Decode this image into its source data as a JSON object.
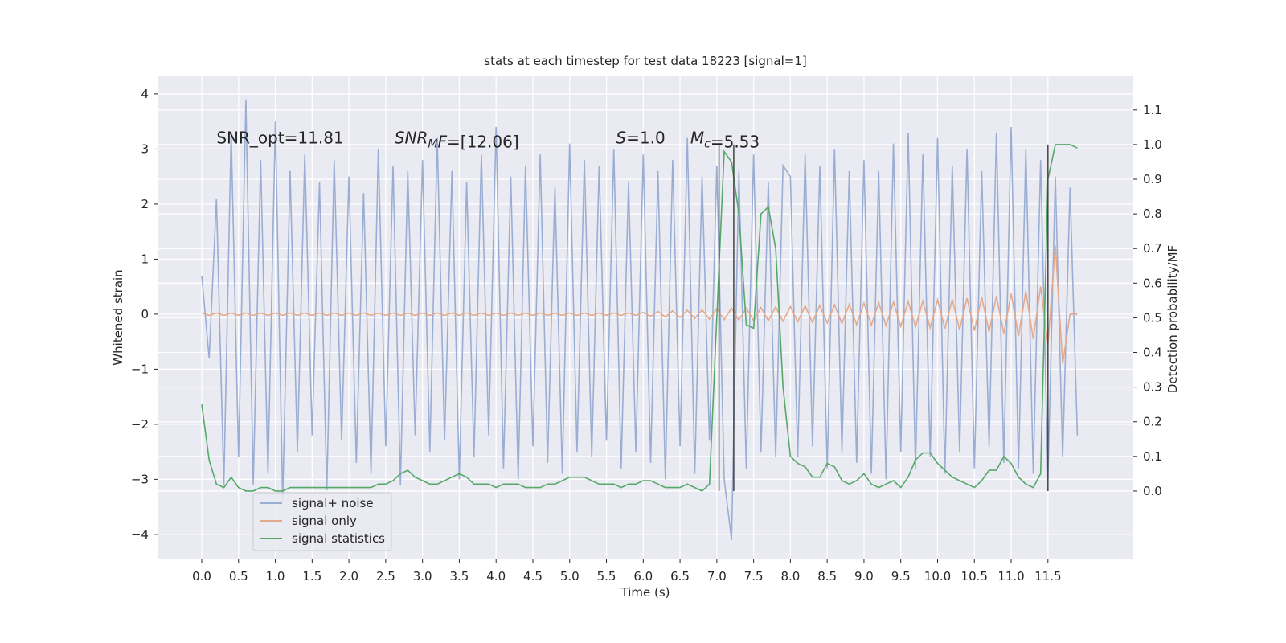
{
  "chart_data": {
    "type": "line",
    "title": "stats at each timestep for test data 18223 [signal=1]",
    "x_label": "Time (s)",
    "y_label": "Whitened strain",
    "y2_label": "Detection probability/MF",
    "background": "#eaeaf2",
    "grid": true,
    "legend": "lower left",
    "xlim": [
      -0.59,
      12.66
    ],
    "ylim": [
      -4.44,
      4.32
    ],
    "y2lim": [
      -0.195,
      1.197
    ],
    "xticks": [
      {
        "value": 0,
        "label": "0.0"
      },
      0.5,
      {
        "value": 1,
        "label": "1.0"
      },
      1.5,
      {
        "value": 2,
        "label": "2.0"
      },
      2.5,
      {
        "value": 3,
        "label": "3.0"
      },
      3.5,
      {
        "value": 4,
        "label": "4.0"
      },
      4.5,
      {
        "value": 5,
        "label": "5.0"
      },
      5.5,
      {
        "value": 6,
        "label": "6.0"
      },
      6.5,
      {
        "value": 7,
        "label": "7.0"
      },
      7.5,
      {
        "value": 8,
        "label": "8.0"
      },
      8.5,
      {
        "value": 9,
        "label": "9.0"
      },
      9.5,
      {
        "value": 10,
        "label": "10.0"
      },
      10.5,
      {
        "value": 11,
        "label": "11.0"
      },
      11.5
    ],
    "yticks": [
      {
        "value": -4,
        "label": "−4"
      },
      {
        "value": -3,
        "label": "−3"
      },
      {
        "value": -2,
        "label": "−2"
      },
      {
        "value": -1,
        "label": "−1"
      },
      0,
      1,
      2,
      3,
      4
    ],
    "y2ticks": [
      {
        "value": 0,
        "label": "0.0"
      },
      0.1,
      0.2,
      0.3,
      0.4,
      0.5,
      0.6,
      0.7,
      0.8,
      0.9,
      {
        "value": 1,
        "label": "1.0"
      },
      1.1
    ],
    "annotations": [
      {
        "x": 0.2,
        "y": 3.1,
        "parts": [
          {
            "text": "SNR_opt=11.81"
          }
        ]
      },
      {
        "x": 2.62,
        "y": 3.1,
        "parts": [
          {
            "text": "SNR",
            "italic": true
          },
          {
            "text": "M",
            "italic": true,
            "sub": true
          },
          {
            "text": "F",
            "italic": true
          },
          {
            "text": "=[12.06]"
          }
        ]
      },
      {
        "x": 5.63,
        "y": 3.1,
        "parts": [
          {
            "text": "S",
            "italic": true
          },
          {
            "text": "=1.0"
          }
        ]
      },
      {
        "x": 6.64,
        "y": 3.1,
        "parts": [
          {
            "text": "M",
            "italic": true
          },
          {
            "text": "c",
            "italic": true,
            "sub": true
          },
          {
            "text": "=5.53"
          }
        ]
      }
    ],
    "vlines": {
      "x": [
        7.03,
        7.23,
        11.5
      ],
      "y2": [
        0,
        1
      ],
      "color": "#444444"
    },
    "x": [
      0.0,
      0.1,
      0.2,
      0.3,
      0.4,
      0.5,
      0.6,
      0.7,
      0.8,
      0.9,
      1.0,
      1.1,
      1.2,
      1.3,
      1.4,
      1.5,
      1.6,
      1.7,
      1.8,
      1.9,
      2.0,
      2.1,
      2.2,
      2.3,
      2.4,
      2.5,
      2.6,
      2.7,
      2.8,
      2.9,
      3.0,
      3.1,
      3.2,
      3.3,
      3.4,
      3.5,
      3.6,
      3.7,
      3.8,
      3.9,
      4.0,
      4.1,
      4.2,
      4.3,
      4.4,
      4.5,
      4.6,
      4.7,
      4.8,
      4.9,
      5.0,
      5.1,
      5.2,
      5.3,
      5.4,
      5.5,
      5.6,
      5.7,
      5.8,
      5.9,
      6.0,
      6.1,
      6.2,
      6.3,
      6.4,
      6.5,
      6.6,
      6.7,
      6.8,
      6.9,
      7.0,
      7.1,
      7.2,
      7.3,
      7.4,
      7.5,
      7.6,
      7.7,
      7.8,
      7.9,
      8.0,
      8.1,
      8.2,
      8.3,
      8.4,
      8.5,
      8.6,
      8.7,
      8.8,
      8.9,
      9.0,
      9.1,
      9.2,
      9.3,
      9.4,
      9.5,
      9.6,
      9.7,
      9.8,
      9.9,
      10.0,
      10.1,
      10.2,
      10.3,
      10.4,
      10.5,
      10.6,
      10.7,
      10.8,
      10.9,
      11.0,
      11.1,
      11.2,
      11.3,
      11.4,
      11.5,
      11.6,
      11.7,
      11.8,
      11.9
    ],
    "series": [
      {
        "name": "signal+ noise",
        "color": "#9aaed3",
        "values": [
          0.7,
          -0.8,
          2.1,
          -3.1,
          3.3,
          -2.6,
          3.9,
          -3.1,
          2.8,
          -2.9,
          3.5,
          -3.4,
          2.6,
          -2.5,
          2.9,
          -2.2,
          2.4,
          -3.2,
          2.8,
          -2.3,
          2.5,
          -2.7,
          2.2,
          -2.9,
          3.0,
          -2.4,
          2.7,
          -3.1,
          2.6,
          -2.2,
          2.8,
          -2.5,
          3.2,
          -2.3,
          2.6,
          -3.0,
          2.4,
          -2.6,
          2.9,
          -2.2,
          3.4,
          -2.8,
          2.5,
          -3.0,
          2.7,
          -2.4,
          2.9,
          -2.7,
          2.3,
          -2.9,
          3.1,
          -2.5,
          2.8,
          -2.6,
          2.7,
          -2.3,
          3.0,
          -2.8,
          2.4,
          -2.5,
          2.9,
          -2.7,
          2.6,
          -3.0,
          2.8,
          -2.4,
          3.2,
          -2.9,
          2.5,
          -2.3,
          2.7,
          -3.0,
          -4.1,
          2.6,
          -2.8,
          2.9,
          -2.5,
          2.4,
          -2.6,
          2.7,
          2.5,
          -2.6,
          2.9,
          -2.4,
          2.7,
          -2.8,
          3.0,
          -2.5,
          2.6,
          -2.7,
          2.8,
          -2.9,
          2.6,
          -3.0,
          3.1,
          -2.5,
          3.3,
          -2.8,
          2.9,
          -2.6,
          3.2,
          -2.9,
          2.7,
          -2.5,
          3.0,
          -2.8,
          2.6,
          -2.4,
          3.3,
          -2.7,
          3.4,
          -2.8,
          3.0,
          -2.9,
          2.8,
          -3.0,
          2.5,
          -2.6,
          2.3,
          -2.2
        ]
      },
      {
        "name": "signal only",
        "color": "#e3a98c",
        "values": [
          0.02,
          -0.02,
          0.02,
          -0.02,
          0.02,
          -0.02,
          0.02,
          -0.02,
          0.02,
          -0.02,
          0.02,
          -0.02,
          0.02,
          -0.02,
          0.02,
          -0.02,
          0.02,
          -0.02,
          0.02,
          -0.02,
          0.02,
          -0.02,
          0.02,
          -0.02,
          0.02,
          -0.02,
          0.02,
          -0.02,
          0.02,
          -0.02,
          0.02,
          -0.02,
          0.02,
          -0.02,
          0.02,
          -0.02,
          0.02,
          -0.02,
          0.02,
          -0.02,
          0.02,
          -0.02,
          0.02,
          -0.02,
          0.02,
          -0.02,
          0.02,
          -0.02,
          0.02,
          -0.02,
          0.02,
          -0.02,
          0.02,
          -0.02,
          0.02,
          -0.02,
          0.02,
          -0.02,
          0.02,
          -0.02,
          0.03,
          -0.04,
          0.05,
          -0.05,
          0.06,
          -0.06,
          0.07,
          -0.08,
          0.08,
          -0.09,
          0.1,
          -0.1,
          0.11,
          -0.11,
          0.11,
          -0.12,
          0.12,
          -0.12,
          0.13,
          -0.13,
          0.14,
          -0.14,
          0.15,
          -0.15,
          0.16,
          -0.16,
          0.17,
          -0.17,
          0.18,
          -0.19,
          0.2,
          -0.2,
          0.21,
          -0.21,
          0.22,
          -0.22,
          0.23,
          -0.23,
          0.24,
          -0.25,
          0.26,
          -0.26,
          0.27,
          -0.28,
          0.29,
          -0.3,
          0.31,
          -0.32,
          0.33,
          -0.35,
          0.37,
          -0.4,
          0.42,
          -0.45,
          0.5,
          -0.55,
          1.25,
          -0.9,
          0.0,
          0.0
        ]
      },
      {
        "name": "signal statistics",
        "color": "#55a868",
        "axis": "y2",
        "values": [
          0.25,
          0.09,
          0.02,
          0.01,
          0.04,
          0.01,
          0.0,
          0.0,
          0.01,
          0.01,
          0.0,
          0.0,
          0.01,
          0.01,
          0.01,
          0.01,
          0.01,
          0.01,
          0.01,
          0.01,
          0.01,
          0.01,
          0.01,
          0.01,
          0.02,
          0.02,
          0.03,
          0.05,
          0.06,
          0.04,
          0.03,
          0.02,
          0.02,
          0.03,
          0.04,
          0.05,
          0.04,
          0.02,
          0.02,
          0.02,
          0.01,
          0.02,
          0.02,
          0.02,
          0.01,
          0.01,
          0.01,
          0.02,
          0.02,
          0.03,
          0.04,
          0.04,
          0.04,
          0.03,
          0.02,
          0.02,
          0.02,
          0.01,
          0.02,
          0.02,
          0.03,
          0.03,
          0.02,
          0.01,
          0.01,
          0.01,
          0.02,
          0.01,
          0.0,
          0.02,
          0.5,
          0.98,
          0.95,
          0.8,
          0.48,
          0.47,
          0.8,
          0.82,
          0.7,
          0.3,
          0.1,
          0.08,
          0.07,
          0.04,
          0.04,
          0.08,
          0.07,
          0.03,
          0.02,
          0.03,
          0.05,
          0.02,
          0.01,
          0.02,
          0.03,
          0.01,
          0.04,
          0.09,
          0.11,
          0.11,
          0.08,
          0.06,
          0.04,
          0.03,
          0.02,
          0.01,
          0.03,
          0.06,
          0.06,
          0.1,
          0.08,
          0.04,
          0.02,
          0.01,
          0.05,
          0.9,
          1.0,
          1.0,
          1.0,
          0.99
        ]
      }
    ]
  }
}
